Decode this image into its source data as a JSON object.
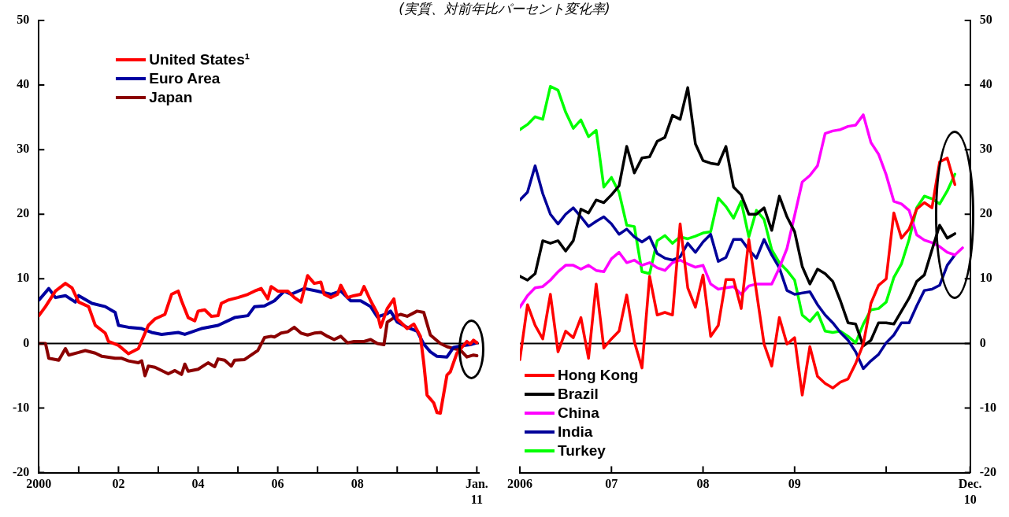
{
  "chart_data": [
    {
      "type": "line",
      "subtitle": "(実質、対前年比パーセント変化率)",
      "legend": "top left",
      "marker": "none",
      "line_style": "solid",
      "xlim": [
        "2000-01",
        "2011-01-20"
      ],
      "xticks": [
        {
          "value": "2000",
          "label": "2000"
        },
        {
          "value": "2001",
          "label": null
        },
        {
          "value": "2002",
          "label": "02"
        },
        {
          "value": "2003",
          "label": null
        },
        {
          "value": "2004",
          "label": "04"
        },
        {
          "value": "2005",
          "label": null
        },
        {
          "value": "2006",
          "label": "06"
        },
        {
          "value": "2007",
          "label": null
        },
        {
          "value": "2008",
          "label": "08"
        },
        {
          "value": "2009",
          "label": null
        },
        {
          "value": "2010",
          "label": null
        },
        {
          "value": "2011-01",
          "label": "Jan.\n11"
        }
      ],
      "ylim": [
        -20,
        50
      ],
      "yticks": [
        -20,
        -10,
        0,
        10,
        20,
        30,
        40,
        50
      ],
      "ref_lines": [
        {
          "axis": "y",
          "value": 0,
          "color": "#000000"
        }
      ],
      "series": [
        {
          "name": "United States¹",
          "color": "#ff0000",
          "x": [
            "2000-01",
            "2000-03",
            "2000-06",
            "2000-09",
            "2000-11",
            "2001-01",
            "2001-04",
            "2001-06",
            "2001-09",
            "2001-10",
            "2002-01",
            "2002-04",
            "2002-07",
            "2002-08",
            "2002-10",
            "2002-12",
            "2003-03",
            "2003-05",
            "2003-07",
            "2003-08",
            "2003-10",
            "2003-12",
            "2004-01",
            "2004-03",
            "2004-05",
            "2004-07",
            "2004-08",
            "2004-10",
            "2005-01",
            "2005-04",
            "2005-06",
            "2005-08",
            "2005-10",
            "2005-11",
            "2006-01",
            "2006-04",
            "2006-06",
            "2006-08",
            "2006-10",
            "2006-12",
            "2007-02",
            "2007-03",
            "2007-05",
            "2007-07",
            "2007-08",
            "2007-10",
            "2007-12",
            "2008-02",
            "2008-03",
            "2008-05",
            "2008-07",
            "2008-08",
            "2008-10",
            "2008-12",
            "2009-01",
            "2009-04",
            "2009-06",
            "2009-08",
            "2009-09",
            "2009-10",
            "2009-12",
            "2010-01",
            "2010-02",
            "2010-04",
            "2010-05",
            "2010-07",
            "2010-10",
            "2010-11",
            "2010-12",
            "2011-01"
          ],
          "values": [
            4.3,
            5.7,
            8.1,
            9.3,
            8.6,
            6.4,
            5.7,
            2.8,
            1.6,
            0.3,
            -0.3,
            -1.6,
            -0.8,
            0.4,
            2.8,
            3.8,
            4.5,
            7.6,
            8.1,
            6.6,
            4.0,
            3.5,
            5.0,
            5.2,
            4.2,
            4.3,
            6.2,
            6.7,
            7.1,
            7.6,
            8.1,
            8.5,
            6.9,
            8.8,
            8.1,
            8.1,
            7.1,
            6.4,
            10.5,
            9.3,
            9.5,
            7.6,
            7.1,
            7.6,
            9.0,
            7.1,
            7.4,
            7.6,
            8.8,
            6.6,
            4.7,
            2.5,
            5.4,
            6.9,
            3.8,
            2.3,
            3.0,
            1.1,
            -3.0,
            -8.0,
            -9.2,
            -10.7,
            -10.8,
            -4.9,
            -4.4,
            -1.5,
            0.3,
            -0.1,
            0.5,
            0.1
          ]
        },
        {
          "name": "Euro Area",
          "color": "#0000a0",
          "x": [
            "2000-01",
            "2000-04",
            "2000-06",
            "2000-09",
            "2000-12",
            "2001-01",
            "2001-05",
            "2001-09",
            "2001-12",
            "2002-01",
            "2002-04",
            "2002-08",
            "2002-11",
            "2003-02",
            "2003-07",
            "2003-09",
            "2004-02",
            "2004-07",
            "2004-12",
            "2005-04",
            "2005-06",
            "2005-09",
            "2005-12",
            "2006-03",
            "2006-05",
            "2006-09",
            "2007-01",
            "2007-05",
            "2007-08",
            "2007-11",
            "2008-02",
            "2008-05",
            "2008-07",
            "2008-10",
            "2008-11",
            "2009-01",
            "2009-04",
            "2009-07",
            "2009-09",
            "2009-11",
            "2010-01",
            "2010-04",
            "2010-06",
            "2010-09",
            "2010-11",
            "2011-01"
          ],
          "values": [
            6.7,
            8.5,
            7.1,
            7.4,
            6.4,
            7.4,
            6.2,
            5.7,
            4.8,
            2.8,
            2.5,
            2.3,
            1.7,
            1.4,
            1.7,
            1.4,
            2.3,
            2.8,
            4.0,
            4.3,
            5.7,
            5.8,
            6.6,
            8.1,
            7.6,
            8.5,
            8.1,
            7.6,
            8.1,
            6.6,
            6.6,
            5.7,
            4.1,
            4.6,
            5.0,
            3.3,
            2.5,
            1.9,
            -0.1,
            -1.3,
            -2.0,
            -2.1,
            -0.6,
            -0.3,
            -0.2,
            0.1
          ]
        },
        {
          "name": "Japan",
          "color": "#8b0000",
          "x": [
            "2000-01",
            "2000-03",
            "2000-04",
            "2000-07",
            "2000-09",
            "2000-10",
            "2001-01",
            "2001-03",
            "2001-06",
            "2001-08",
            "2001-12",
            "2002-02",
            "2002-04",
            "2002-07",
            "2002-08",
            "2002-09",
            "2002-10",
            "2002-12",
            "2003-04",
            "2003-06",
            "2003-08",
            "2003-09",
            "2003-10",
            "2004-01",
            "2004-04",
            "2004-06",
            "2004-07",
            "2004-09",
            "2004-11",
            "2004-12",
            "2005-03",
            "2005-05",
            "2005-07",
            "2005-09",
            "2005-11",
            "2005-12",
            "2006-02",
            "2006-04",
            "2006-06",
            "2006-08",
            "2006-10",
            "2006-12",
            "2007-02",
            "2007-04",
            "2007-06",
            "2007-08",
            "2007-10",
            "2007-12",
            "2008-03",
            "2008-05",
            "2008-07",
            "2008-09",
            "2008-10",
            "2009-01",
            "2009-02",
            "2009-04",
            "2009-07",
            "2009-09",
            "2009-11",
            "2010-02",
            "2010-04",
            "2010-06",
            "2010-08",
            "2010-10",
            "2010-12",
            "2011-01"
          ],
          "values": [
            0,
            0,
            -2.3,
            -2.6,
            -0.8,
            -1.8,
            -1.4,
            -1.1,
            -1.5,
            -2.0,
            -2.3,
            -2.3,
            -2.7,
            -3.0,
            -2.7,
            -5.0,
            -3.5,
            -3.7,
            -4.7,
            -4.2,
            -4.8,
            -3.2,
            -4.3,
            -4.0,
            -3.0,
            -3.6,
            -2.4,
            -2.6,
            -3.5,
            -2.6,
            -2.5,
            -1.8,
            -1.1,
            0.9,
            1.1,
            1.0,
            1.6,
            1.8,
            2.5,
            1.6,
            1.3,
            1.6,
            1.7,
            1.1,
            0.6,
            1.1,
            0.1,
            0.3,
            0.3,
            0.6,
            0,
            -0.2,
            3.3,
            4.3,
            4.5,
            4.2,
            5.0,
            4.8,
            1.3,
            0,
            -0.5,
            -0.8,
            -1.0,
            -2.1,
            -1.8,
            -1.9
          ]
        }
      ]
    },
    {
      "type": "line",
      "legend": "bottom left",
      "marker": "none",
      "line_style": "solid",
      "xlim": [
        "2006-01",
        "2010-12"
      ],
      "xticks": [
        {
          "value": "2006",
          "label": "2006"
        },
        {
          "value": "2007",
          "label": "07"
        },
        {
          "value": "2008",
          "label": "08"
        },
        {
          "value": "2009",
          "label": "09"
        },
        {
          "value": "2010",
          "label": null
        },
        {
          "value": "2010-12",
          "label": "Dec.\n10"
        }
      ],
      "y2lim": [
        -20,
        50
      ],
      "y2ticks": [
        -20,
        -10,
        0,
        10,
        20,
        30,
        40,
        50
      ],
      "ref_lines": [
        {
          "axis": "y2",
          "value": 0,
          "color": "#000000"
        }
      ],
      "series": [
        {
          "name": "Hong Kong",
          "color": "#ff0000",
          "axis": "y2",
          "x": [
            "2006-01",
            "2006-02",
            "2006-03",
            "2006-04",
            "2006-05",
            "2006-06",
            "2006-07",
            "2006-08",
            "2006-09",
            "2006-10",
            "2006-11",
            "2006-12",
            "2007-01",
            "2007-02",
            "2007-03",
            "2007-04",
            "2007-05",
            "2007-06",
            "2007-07",
            "2007-08",
            "2007-09",
            "2007-10",
            "2007-11",
            "2007-12",
            "2008-01",
            "2008-02",
            "2008-03",
            "2008-04",
            "2008-05",
            "2008-06",
            "2008-07",
            "2008-09",
            "2008-10",
            "2008-11",
            "2008-12",
            "2009-01",
            "2009-02",
            "2009-03",
            "2009-04",
            "2009-05",
            "2009-06",
            "2009-07",
            "2009-08",
            "2009-09",
            "2009-10",
            "2009-11",
            "2009-12",
            "2010-01",
            "2010-02",
            "2010-03",
            "2010-04",
            "2010-05",
            "2010-06",
            "2010-07",
            "2010-08",
            "2010-09",
            "2010-10"
          ],
          "values": [
            -2.5,
            6.0,
            2.8,
            0.7,
            7.6,
            -1.3,
            1.9,
            0.9,
            4.0,
            -2.3,
            9.2,
            -0.7,
            0.7,
            1.9,
            7.5,
            0.3,
            -3.8,
            10.4,
            4.4,
            4.8,
            4.4,
            18.5,
            8.6,
            5.6,
            10.6,
            1.1,
            2.8,
            9.9,
            9.9,
            5.4,
            16.1,
            -0.1,
            -3.5,
            4.0,
            -0.1,
            0.9,
            -8.0,
            -0.5,
            -5.1,
            -6.2,
            -6.9,
            -6.0,
            -5.5,
            -3.1,
            -0.1,
            6.2,
            9.0,
            10.0,
            20.2,
            16.3,
            17.7,
            20.8,
            21.8,
            21.0,
            28.1,
            28.7,
            24.6
          ]
        },
        {
          "name": "Brazil",
          "color": "#000000",
          "axis": "y2",
          "x": [
            "2006-01",
            "2006-02",
            "2006-03",
            "2006-04",
            "2006-05",
            "2006-06",
            "2006-07",
            "2006-08",
            "2006-09",
            "2006-10",
            "2006-11",
            "2006-12",
            "2007-01",
            "2007-02",
            "2007-03",
            "2007-04",
            "2007-05",
            "2007-06",
            "2007-07",
            "2007-08",
            "2007-09",
            "2007-10",
            "2007-11",
            "2007-12",
            "2008-01",
            "2008-02",
            "2008-03",
            "2008-04",
            "2008-05",
            "2008-06",
            "2008-07",
            "2008-08",
            "2008-09",
            "2008-10",
            "2008-11",
            "2008-12",
            "2009-01",
            "2009-02",
            "2009-03",
            "2009-04",
            "2009-05",
            "2009-06",
            "2009-07",
            "2009-08",
            "2009-09",
            "2009-10",
            "2009-11",
            "2009-12",
            "2010-01",
            "2010-02",
            "2010-03",
            "2010-04",
            "2010-05",
            "2010-06",
            "2010-07",
            "2010-08",
            "2010-09",
            "2010-10"
          ],
          "values": [
            10.4,
            9.8,
            10.8,
            15.9,
            15.5,
            15.9,
            14.3,
            15.9,
            20.8,
            20.2,
            22.2,
            21.8,
            23.0,
            24.4,
            30.5,
            26.4,
            28.7,
            28.9,
            31.3,
            31.9,
            35.3,
            34.7,
            39.6,
            30.9,
            28.3,
            27.9,
            27.7,
            30.5,
            24.2,
            23.0,
            20.0,
            20.0,
            21.0,
            17.5,
            22.8,
            19.6,
            17.3,
            11.9,
            9.2,
            11.5,
            10.8,
            9.6,
            6.6,
            3.2,
            3.0,
            -0.4,
            0.5,
            3.2,
            3.2,
            3.0,
            5.0,
            7.0,
            9.6,
            10.6,
            14.5,
            18.3,
            16.3,
            17.0
          ]
        },
        {
          "name": "China",
          "color": "#ff00ff",
          "axis": "y2",
          "x": [
            "2006-01",
            "2006-02",
            "2006-03",
            "2006-04",
            "2006-05",
            "2006-06",
            "2006-07",
            "2006-08",
            "2006-09",
            "2006-10",
            "2006-11",
            "2006-12",
            "2007-01",
            "2007-02",
            "2007-03",
            "2007-04",
            "2007-05",
            "2007-06",
            "2007-07",
            "2007-08",
            "2007-09",
            "2007-10",
            "2007-11",
            "2007-12",
            "2008-01",
            "2008-02",
            "2008-03",
            "2008-04",
            "2008-05",
            "2008-06",
            "2008-07",
            "2008-08",
            "2008-10",
            "2008-11",
            "2008-12",
            "2009-01",
            "2009-02",
            "2009-03",
            "2009-04",
            "2009-05",
            "2009-06",
            "2009-07",
            "2009-08",
            "2009-09",
            "2009-10",
            "2009-11",
            "2009-12",
            "2010-01",
            "2010-02",
            "2010-03",
            "2010-04",
            "2010-05",
            "2010-06",
            "2010-07",
            "2010-08",
            "2010-09",
            "2010-10",
            "2010-11"
          ],
          "values": [
            5.6,
            7.4,
            8.6,
            8.8,
            9.8,
            11.1,
            12.1,
            12.1,
            11.5,
            12.1,
            11.3,
            11.1,
            13.1,
            14.1,
            12.5,
            12.9,
            12.1,
            12.5,
            11.7,
            11.3,
            12.5,
            12.9,
            12.3,
            11.8,
            12.1,
            9.2,
            8.4,
            8.6,
            8.8,
            7.6,
            8.9,
            9.2,
            9.2,
            11.7,
            14.7,
            19.8,
            25.0,
            26.0,
            27.5,
            32.5,
            32.9,
            33.1,
            33.6,
            33.8,
            35.4,
            31.1,
            29.3,
            26.1,
            22.0,
            21.6,
            20.6,
            16.8,
            16.0,
            15.6,
            15.0,
            14.1,
            13.7,
            14.8
          ]
        },
        {
          "name": "India",
          "color": "#000099",
          "axis": "y2",
          "x": [
            "2006-01",
            "2006-02",
            "2006-03",
            "2006-04",
            "2006-05",
            "2006-06",
            "2006-07",
            "2006-08",
            "2006-09",
            "2006-10",
            "2006-11",
            "2006-12",
            "2007-01",
            "2007-02",
            "2007-03",
            "2007-04",
            "2007-05",
            "2007-06",
            "2007-07",
            "2007-08",
            "2007-09",
            "2007-10",
            "2007-11",
            "2007-12",
            "2008-01",
            "2008-02",
            "2008-03",
            "2008-04",
            "2008-05",
            "2008-06",
            "2008-07",
            "2008-08",
            "2008-09",
            "2008-10",
            "2008-11",
            "2008-12",
            "2009-01",
            "2009-03",
            "2009-04",
            "2009-05",
            "2009-06",
            "2009-07",
            "2009-08",
            "2009-09",
            "2009-10",
            "2009-11",
            "2009-12",
            "2010-01",
            "2010-02",
            "2010-03",
            "2010-04",
            "2010-05",
            "2010-06",
            "2010-07",
            "2010-08",
            "2010-09",
            "2010-10"
          ],
          "values": [
            22.2,
            23.4,
            27.5,
            23.2,
            20.0,
            18.5,
            20.0,
            21.0,
            19.6,
            18.1,
            18.9,
            19.6,
            18.5,
            16.9,
            17.7,
            16.5,
            15.7,
            16.5,
            13.9,
            13.2,
            12.9,
            13.4,
            15.5,
            14.1,
            15.7,
            16.9,
            12.7,
            13.3,
            16.1,
            16.1,
            14.5,
            13.2,
            16.1,
            13.7,
            11.7,
            8.2,
            7.6,
            8.0,
            6.0,
            4.4,
            3.2,
            1.7,
            0.5,
            -1.3,
            -3.9,
            -2.7,
            -1.7,
            0.1,
            1.3,
            3.2,
            3.2,
            5.8,
            8.2,
            8.4,
            9.0,
            12.1,
            13.7
          ]
        },
        {
          "name": "Turkey",
          "color": "#00ff00",
          "axis": "y2",
          "x": [
            "2006-01",
            "2006-02",
            "2006-03",
            "2006-04",
            "2006-05",
            "2006-06",
            "2006-07",
            "2006-08",
            "2006-09",
            "2006-10",
            "2006-11",
            "2006-12",
            "2007-01",
            "2007-02",
            "2007-03",
            "2007-04",
            "2007-05",
            "2007-06",
            "2007-07",
            "2007-08",
            "2007-09",
            "2007-10",
            "2007-11",
            "2007-12",
            "2008-01",
            "2008-02",
            "2008-03",
            "2008-04",
            "2008-05",
            "2008-06",
            "2008-07",
            "2008-08",
            "2008-09",
            "2008-10",
            "2008-11",
            "2008-12",
            "2009-01",
            "2009-02",
            "2009-03",
            "2009-04",
            "2009-05",
            "2009-06",
            "2009-07",
            "2009-08",
            "2009-09",
            "2009-10",
            "2009-11",
            "2009-12",
            "2010-01",
            "2010-02",
            "2010-03",
            "2010-04",
            "2010-05",
            "2010-06",
            "2010-07",
            "2010-08",
            "2010-09",
            "2010-10"
          ],
          "values": [
            33.1,
            33.9,
            35.1,
            34.7,
            39.8,
            39.2,
            35.8,
            33.3,
            34.6,
            32.0,
            33.0,
            24.2,
            25.7,
            23.4,
            18.3,
            18.1,
            11.1,
            10.8,
            15.9,
            16.7,
            15.5,
            16.5,
            16.2,
            16.6,
            17.1,
            17.3,
            22.5,
            21.2,
            19.4,
            22.0,
            16.5,
            20.6,
            19.2,
            14.5,
            12.5,
            11.3,
            9.8,
            4.4,
            3.4,
            4.8,
            1.9,
            1.7,
            1.9,
            1.1,
            0.1,
            3.0,
            5.2,
            5.4,
            6.4,
            10.2,
            12.3,
            16.1,
            21.0,
            22.8,
            22.4,
            21.6,
            23.6,
            26.2
          ]
        }
      ]
    }
  ]
}
